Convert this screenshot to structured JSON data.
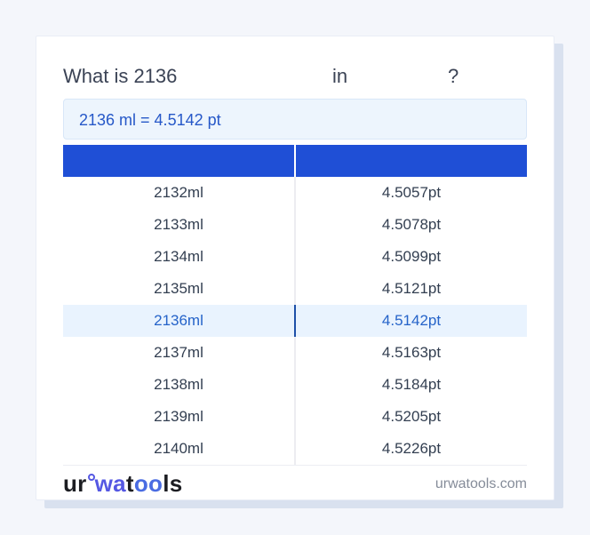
{
  "title": {
    "prefix": "What is 2136",
    "connector": "in",
    "question_mark": "?"
  },
  "result": {
    "text": "2136 ml = 4.5142 pt"
  },
  "table": {
    "header_ml": "",
    "header_pt": "",
    "rows": [
      {
        "ml": "2132ml",
        "pt": "4.5057pt",
        "highlighted": false
      },
      {
        "ml": "2133ml",
        "pt": "4.5078pt",
        "highlighted": false
      },
      {
        "ml": "2134ml",
        "pt": "4.5099pt",
        "highlighted": false
      },
      {
        "ml": "2135ml",
        "pt": "4.5121pt",
        "highlighted": false
      },
      {
        "ml": "2136ml",
        "pt": "4.5142pt",
        "highlighted": true
      },
      {
        "ml": "2137ml",
        "pt": "4.5163pt",
        "highlighted": false
      },
      {
        "ml": "2138ml",
        "pt": "4.5184pt",
        "highlighted": false
      },
      {
        "ml": "2139ml",
        "pt": "4.5205pt",
        "highlighted": false
      },
      {
        "ml": "2140ml",
        "pt": "4.5226pt",
        "highlighted": false
      }
    ]
  },
  "footer": {
    "logo": {
      "seg_ur": "ur",
      "seg_wa": "wa",
      "seg_t": "t",
      "seg_oo": "oo",
      "seg_ls": "ls"
    },
    "domain": "urwatools.com"
  },
  "colors": {
    "page_bg": "#f4f6fb",
    "card_bg": "#ffffff",
    "card_shadow": "#d9e1ef",
    "table_header_blue": "#1f4fd6",
    "result_box_bg": "#edf5fd",
    "result_text_blue": "#2658c8",
    "highlight_row_bg": "#e9f3fe",
    "highlight_row_text": "#2563c9",
    "highlight_divider_blue": "#1d4fa8",
    "row_text": "#333f51",
    "logo_blue": "#5558e3",
    "domain_text_gray": "#858c99"
  }
}
